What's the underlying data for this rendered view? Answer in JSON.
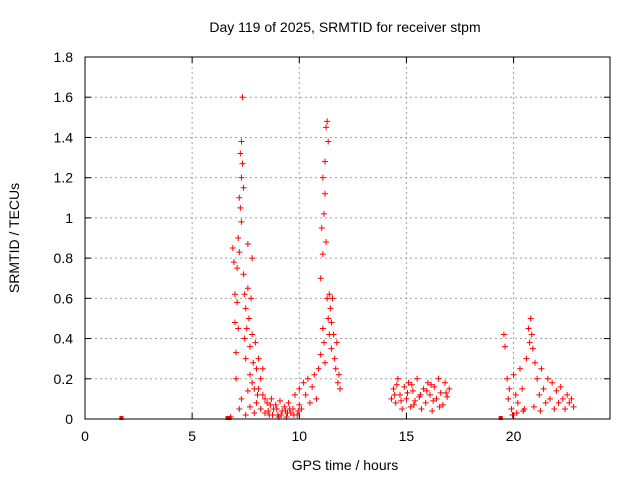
{
  "chart_data": {
    "type": "scatter",
    "title": "Day 119 of 2025, SRMTID for receiver stpm",
    "xlabel": "GPS time / hours",
    "ylabel": "SRMTID / TECUs",
    "xlim": [
      0,
      24.5
    ],
    "ylim": [
      0,
      1.8
    ],
    "xticks": [
      0,
      5,
      10,
      15,
      20
    ],
    "xtick_labels": [
      "0",
      "5",
      "10",
      "15",
      "20"
    ],
    "yticks": [
      0,
      0.2,
      0.4,
      0.6,
      0.8,
      1.0,
      1.2,
      1.4,
      1.6,
      1.8
    ],
    "ytick_labels": [
      "0",
      "0.2",
      "0.4",
      "0.6",
      "0.8",
      "1",
      "1.2",
      "1.4",
      "1.6",
      "1.8"
    ],
    "grid": true,
    "marker": "plus",
    "color": "#ff0000",
    "series": [
      {
        "name": "SRMTID",
        "points": [
          [
            1.7,
            0.0
          ],
          [
            6.65,
            0.0
          ],
          [
            6.75,
            0.0
          ],
          [
            6.8,
            0.01
          ],
          [
            6.9,
            0.85
          ],
          [
            6.95,
            0.78
          ],
          [
            7.0,
            0.62
          ],
          [
            7.0,
            0.48
          ],
          [
            7.05,
            0.33
          ],
          [
            7.05,
            0.2
          ],
          [
            7.1,
            0.75
          ],
          [
            7.1,
            0.58
          ],
          [
            7.15,
            0.9
          ],
          [
            7.15,
            0.45
          ],
          [
            7.2,
            1.1
          ],
          [
            7.2,
            0.83
          ],
          [
            7.25,
            1.32
          ],
          [
            7.25,
            1.05
          ],
          [
            7.3,
            1.38
          ],
          [
            7.3,
            1.2
          ],
          [
            7.3,
            0.98
          ],
          [
            7.35,
            1.6
          ],
          [
            7.35,
            1.27
          ],
          [
            7.4,
            1.15
          ],
          [
            7.4,
            0.72
          ],
          [
            7.45,
            0.62
          ],
          [
            7.45,
            0.4
          ],
          [
            7.5,
            0.55
          ],
          [
            7.5,
            0.3
          ],
          [
            7.55,
            0.45
          ],
          [
            7.6,
            0.87
          ],
          [
            7.6,
            0.65
          ],
          [
            7.65,
            0.5
          ],
          [
            7.7,
            0.36
          ],
          [
            7.7,
            0.22
          ],
          [
            7.75,
            0.6
          ],
          [
            7.8,
            0.8
          ],
          [
            7.8,
            0.42
          ],
          [
            7.85,
            0.28
          ],
          [
            7.9,
            0.15
          ],
          [
            7.95,
            0.38
          ],
          [
            8.0,
            0.25
          ],
          [
            8.05,
            0.12
          ],
          [
            8.1,
            0.3
          ],
          [
            8.2,
            0.2
          ],
          [
            8.3,
            0.25
          ],
          [
            8.4,
            0.1
          ],
          [
            7.2,
            0.05
          ],
          [
            7.3,
            0.1
          ],
          [
            7.5,
            0.02
          ],
          [
            7.6,
            0.14
          ],
          [
            7.7,
            0.06
          ],
          [
            7.8,
            0.18
          ],
          [
            7.9,
            0.03
          ],
          [
            8.0,
            0.08
          ],
          [
            8.1,
            0.15
          ],
          [
            8.2,
            0.05
          ],
          [
            8.3,
            0.12
          ],
          [
            8.4,
            0.03
          ],
          [
            8.5,
            0.08
          ],
          [
            8.6,
            0.02
          ],
          [
            8.7,
            0.1
          ],
          [
            8.8,
            0.05
          ],
          [
            8.9,
            0.07
          ],
          [
            9.0,
            0.02
          ],
          [
            9.1,
            0.09
          ],
          [
            9.2,
            0.04
          ],
          [
            9.3,
            0.06
          ],
          [
            9.4,
            0.01
          ],
          [
            9.5,
            0.08
          ],
          [
            9.6,
            0.03
          ],
          [
            9.7,
            0.05
          ],
          [
            9.8,
            0.12
          ],
          [
            9.9,
            0.02
          ],
          [
            10.0,
            0.07
          ],
          [
            8.55,
            0.04
          ],
          [
            8.75,
            0.02
          ],
          [
            8.95,
            0.05
          ],
          [
            9.15,
            0.02
          ],
          [
            9.35,
            0.04
          ],
          [
            9.55,
            0.05
          ],
          [
            9.75,
            0.02
          ],
          [
            9.95,
            0.04
          ],
          [
            8.65,
            0.07
          ],
          [
            9.05,
            0.01
          ],
          [
            9.45,
            0.03
          ],
          [
            10.0,
            0.15
          ],
          [
            10.1,
            0.05
          ],
          [
            10.2,
            0.18
          ],
          [
            10.3,
            0.12
          ],
          [
            10.4,
            0.2
          ],
          [
            10.5,
            0.08
          ],
          [
            10.6,
            0.16
          ],
          [
            10.7,
            0.22
          ],
          [
            10.8,
            0.1
          ],
          [
            10.9,
            0.25
          ],
          [
            11.0,
            0.32
          ],
          [
            11.0,
            0.7
          ],
          [
            11.05,
            0.95
          ],
          [
            11.1,
            1.2
          ],
          [
            11.1,
            0.82
          ],
          [
            11.15,
            1.02
          ],
          [
            11.2,
            1.28
          ],
          [
            11.2,
            1.12
          ],
          [
            11.25,
            1.45
          ],
          [
            11.25,
            0.88
          ],
          [
            11.3,
            1.48
          ],
          [
            11.3,
            0.6
          ],
          [
            11.35,
            1.38
          ],
          [
            11.35,
            0.5
          ],
          [
            11.4,
            0.62
          ],
          [
            11.4,
            0.42
          ],
          [
            11.45,
            0.55
          ],
          [
            11.5,
            0.48
          ],
          [
            11.5,
            0.35
          ],
          [
            11.55,
            0.6
          ],
          [
            11.6,
            0.42
          ],
          [
            11.65,
            0.3
          ],
          [
            11.7,
            0.25
          ],
          [
            11.75,
            0.38
          ],
          [
            11.8,
            0.18
          ],
          [
            11.85,
            0.22
          ],
          [
            11.9,
            0.15
          ],
          [
            11.1,
            0.45
          ],
          [
            11.15,
            0.38
          ],
          [
            11.2,
            0.28
          ],
          [
            14.3,
            0.1
          ],
          [
            14.4,
            0.15
          ],
          [
            14.5,
            0.08
          ],
          [
            14.6,
            0.2
          ],
          [
            14.7,
            0.12
          ],
          [
            14.8,
            0.05
          ],
          [
            14.9,
            0.16
          ],
          [
            15.0,
            0.1
          ],
          [
            15.1,
            0.18
          ],
          [
            15.2,
            0.06
          ],
          [
            15.3,
            0.14
          ],
          [
            15.4,
            0.09
          ],
          [
            15.5,
            0.2
          ],
          [
            15.6,
            0.11
          ],
          [
            15.7,
            0.05
          ],
          [
            15.8,
            0.15
          ],
          [
            15.9,
            0.08
          ],
          [
            16.0,
            0.18
          ],
          [
            16.1,
            0.12
          ],
          [
            16.2,
            0.04
          ],
          [
            16.3,
            0.16
          ],
          [
            16.4,
            0.1
          ],
          [
            16.5,
            0.2
          ],
          [
            16.6,
            0.13
          ],
          [
            16.7,
            0.07
          ],
          [
            16.8,
            0.18
          ],
          [
            16.9,
            0.11
          ],
          [
            17.0,
            0.15
          ],
          [
            14.45,
            0.12
          ],
          [
            14.75,
            0.09
          ],
          [
            15.05,
            0.13
          ],
          [
            15.35,
            0.07
          ],
          [
            15.65,
            0.12
          ],
          [
            15.95,
            0.14
          ],
          [
            16.25,
            0.09
          ],
          [
            16.55,
            0.06
          ],
          [
            16.85,
            0.13
          ],
          [
            14.55,
            0.17
          ],
          [
            15.25,
            0.17
          ],
          [
            16.15,
            0.17
          ],
          [
            19.4,
            0.0
          ],
          [
            19.55,
            0.42
          ],
          [
            19.6,
            0.36
          ],
          [
            19.7,
            0.2
          ],
          [
            19.75,
            0.1
          ],
          [
            19.8,
            0.15
          ],
          [
            19.9,
            0.05
          ],
          [
            20.0,
            0.22
          ],
          [
            20.1,
            0.12
          ],
          [
            20.2,
            0.08
          ],
          [
            20.3,
            0.25
          ],
          [
            20.4,
            0.15
          ],
          [
            20.5,
            0.05
          ],
          [
            20.6,
            0.3
          ],
          [
            20.7,
            0.45
          ],
          [
            20.75,
            0.38
          ],
          [
            20.8,
            0.5
          ],
          [
            20.85,
            0.42
          ],
          [
            20.9,
            0.35
          ],
          [
            21.0,
            0.28
          ],
          [
            21.1,
            0.2
          ],
          [
            21.2,
            0.12
          ],
          [
            21.3,
            0.25
          ],
          [
            21.4,
            0.15
          ],
          [
            21.5,
            0.08
          ],
          [
            21.6,
            0.2
          ],
          [
            21.7,
            0.1
          ],
          [
            21.8,
            0.18
          ],
          [
            21.9,
            0.05
          ],
          [
            22.0,
            0.14
          ],
          [
            22.1,
            0.08
          ],
          [
            22.2,
            0.16
          ],
          [
            22.3,
            0.1
          ],
          [
            22.4,
            0.05
          ],
          [
            22.5,
            0.12
          ],
          [
            22.6,
            0.08
          ],
          [
            22.7,
            0.1
          ],
          [
            22.8,
            0.06
          ],
          [
            19.95,
            0.02
          ],
          [
            20.15,
            0.03
          ],
          [
            20.45,
            0.04
          ],
          [
            20.95,
            0.06
          ],
          [
            21.25,
            0.04
          ]
        ]
      }
    ]
  }
}
